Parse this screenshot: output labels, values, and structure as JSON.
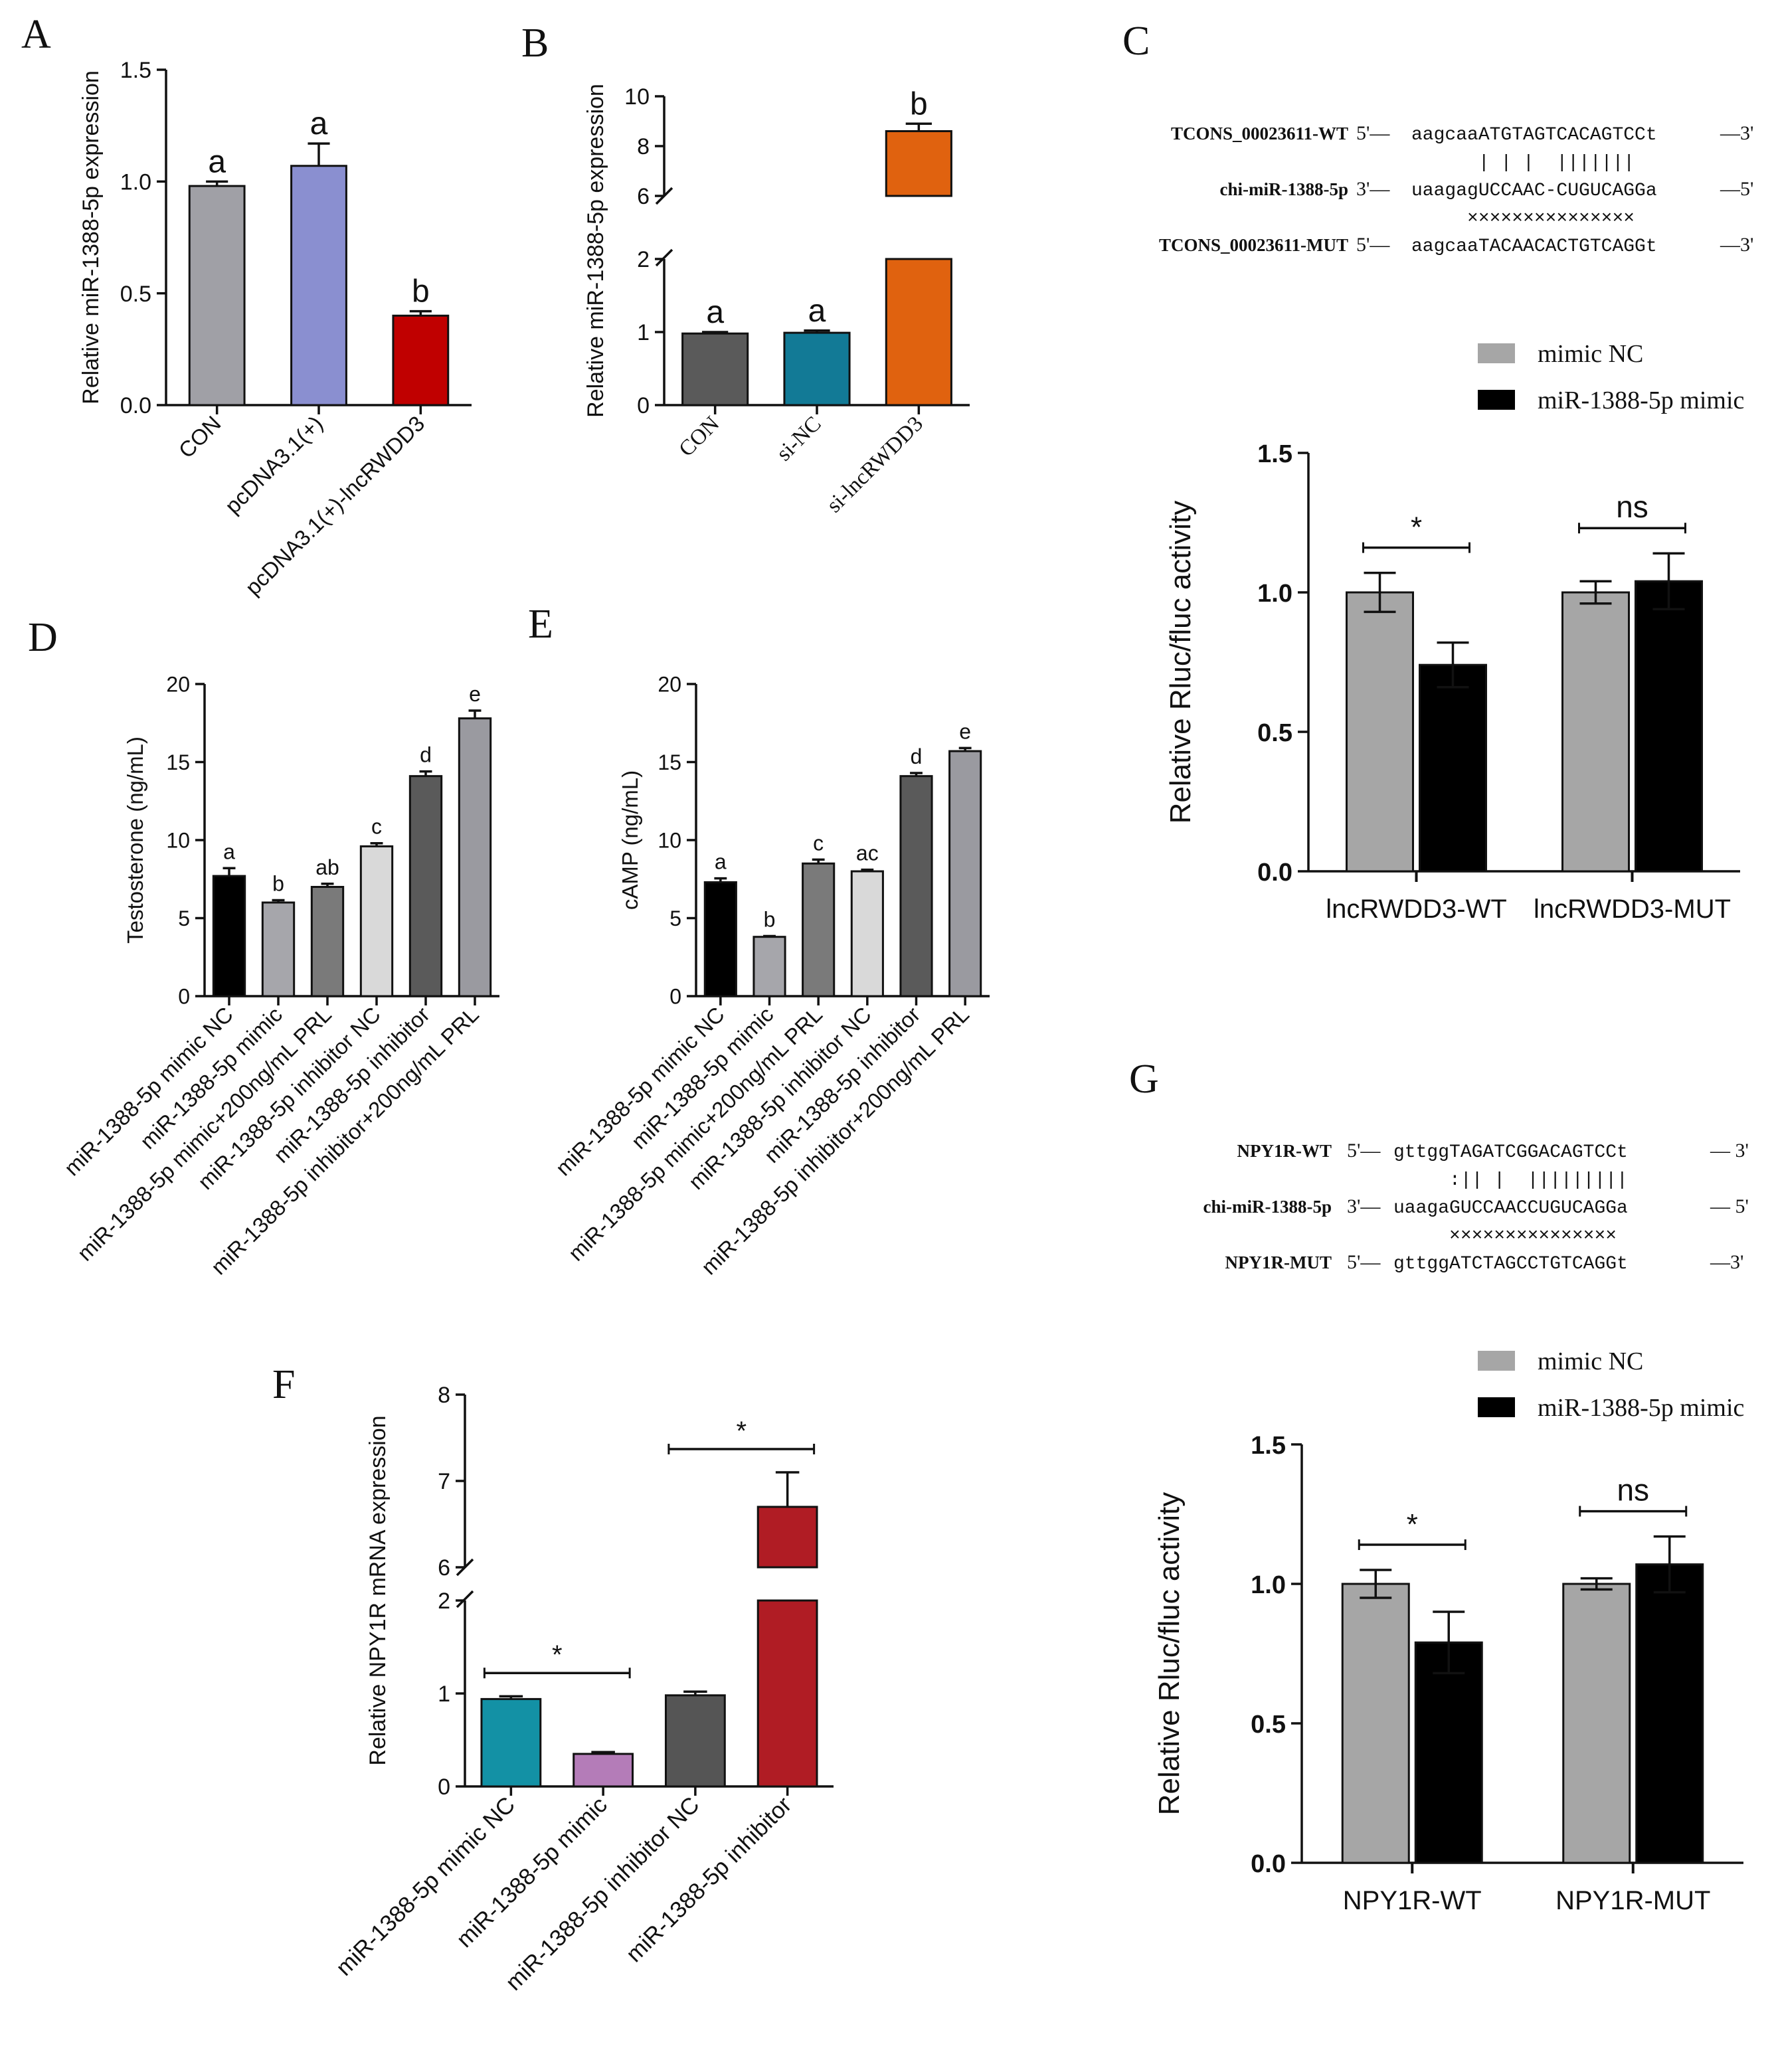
{
  "figure": {
    "panel_letters": [
      "A",
      "B",
      "C",
      "D",
      "E",
      "F",
      "G"
    ]
  },
  "chart_data": [
    {
      "panel": "A",
      "type": "bar",
      "ylabel": "Relative miR-1388-5p expression",
      "xlabel": "",
      "categories": [
        "CON",
        "pcDNA3.1(+)",
        "pcDNA3.1(+)-lncRWDD3"
      ],
      "values": [
        0.98,
        1.07,
        0.4
      ],
      "errors": [
        0.02,
        0.1,
        0.02
      ],
      "letters": [
        "a",
        "a",
        "b"
      ],
      "colors": [
        "#a0a0a6",
        "#8a8fd0",
        "#c00000"
      ],
      "ylim": [
        0,
        1.5
      ],
      "yticks": [
        "0.0",
        "0.5",
        "1.0",
        "1.5"
      ]
    },
    {
      "panel": "B",
      "type": "bar",
      "broken_axis": true,
      "ylabel": "Relative miR-1388-5p expression",
      "xlabel": "",
      "categories": [
        "CON",
        "si-NC",
        "si-lncRWDD3"
      ],
      "values": [
        0.98,
        0.99,
        8.6
      ],
      "errors": [
        0.02,
        0.03,
        0.3
      ],
      "letters": [
        "a",
        "a",
        "b"
      ],
      "colors": [
        "#5a5a5a",
        "#127a96",
        "#e0620f"
      ],
      "ylim_lower": [
        0,
        2
      ],
      "ylim_upper": [
        6,
        10
      ],
      "yticks_lower": [
        "0",
        "1",
        "2"
      ],
      "yticks_upper": [
        "6",
        "8",
        "10"
      ]
    },
    {
      "panel": "C",
      "type": "bar",
      "sequence": {
        "rows": [
          {
            "label": "TCONS_00023611-WT",
            "left": "5'—",
            "seq": "aagcaaATGTAGTCACAGTCCt",
            "right": "—3'"
          },
          {
            "label": "",
            "left": "",
            "seq": "      | | |  |||||||",
            "right": ""
          },
          {
            "label": "chi-miR-1388-5p",
            "left": "3'—",
            "seq": "uaagagUCCAAC-CUGUCAGGa",
            "right": "—5'"
          },
          {
            "label": "",
            "left": "",
            "seq": "     ×××××××××××××××",
            "right": ""
          },
          {
            "label": "TCONS_00023611-MUT",
            "left": "5'—",
            "seq": "aagcaaTACAACACTGTCAGGt",
            "right": "—3'"
          }
        ]
      },
      "legend": [
        "mimic NC",
        "miR-1388-5p mimic"
      ],
      "ylabel": "Relative Rluc/fluc activity",
      "xlabel": "",
      "categories": [
        "lncRWDD3-WT",
        "lncRWDD3-MUT"
      ],
      "series": [
        {
          "name": "mimic NC",
          "color": "#a6a6a6",
          "values": [
            1.0,
            1.0
          ],
          "errors": [
            0.07,
            0.04
          ]
        },
        {
          "name": "miR-1388-5p mimic",
          "color": "#000000",
          "values": [
            0.74,
            1.04
          ],
          "errors": [
            0.08,
            0.1
          ]
        }
      ],
      "significance": [
        "*",
        "ns"
      ],
      "ylim": [
        0,
        1.5
      ],
      "yticks": [
        "0.0",
        "0.5",
        "1.0",
        "1.5"
      ]
    },
    {
      "panel": "D",
      "type": "bar",
      "ylabel": "Testosterone (ng/mL)",
      "xlabel": "",
      "categories": [
        "miR-1388-5p mimic NC",
        "miR-1388-5p mimic",
        "miR-1388-5p mimic+200ng/mL PRL",
        "miR-1388-5p inhibitor NC",
        "miR-1388-5p inhibitor",
        "miR-1388-5p inhibitor+200ng/mL PRL"
      ],
      "values": [
        7.7,
        6.0,
        7.0,
        9.6,
        14.1,
        17.8
      ],
      "errors": [
        0.5,
        0.15,
        0.2,
        0.2,
        0.3,
        0.5
      ],
      "letters": [
        "a",
        "b",
        "ab",
        "c",
        "d",
        "e"
      ],
      "colors": [
        "#000000",
        "#a6a6ab",
        "#7a7a7a",
        "#d9d9d9",
        "#5a5a5a",
        "#9a9aa0"
      ],
      "ylim": [
        0,
        20
      ],
      "yticks": [
        "0",
        "5",
        "10",
        "15",
        "20"
      ]
    },
    {
      "panel": "E",
      "type": "bar",
      "ylabel": "cAMP (ng/mL)",
      "xlabel": "",
      "categories": [
        "miR-1388-5p mimic NC",
        "miR-1388-5p mimic",
        "miR-1388-5p mimic+200ng/mL PRL",
        "miR-1388-5p inhibitor NC",
        "miR-1388-5p inhibitor",
        "miR-1388-5p inhibitor+200ng/mL PRL"
      ],
      "values": [
        7.3,
        3.8,
        8.5,
        8.0,
        14.1,
        15.7
      ],
      "errors": [
        0.25,
        0.05,
        0.25,
        0.1,
        0.2,
        0.2
      ],
      "letters": [
        "a",
        "b",
        "c",
        "ac",
        "d",
        "e"
      ],
      "colors": [
        "#000000",
        "#a6a6ab",
        "#7a7a7a",
        "#d9d9d9",
        "#5a5a5a",
        "#9a9aa0"
      ],
      "ylim": [
        0,
        20
      ],
      "yticks": [
        "0",
        "5",
        "10",
        "15",
        "20"
      ]
    },
    {
      "panel": "F",
      "type": "bar",
      "broken_axis": true,
      "ylabel": "Relative NPY1R mRNA expression",
      "xlabel": "",
      "categories": [
        "miR-1388-5p mimic NC",
        "miR-1388-5p mimic",
        "miR-1388-5p inhibitor NC",
        "miR-1388-5p inhibitor"
      ],
      "values": [
        0.94,
        0.35,
        0.98,
        6.7
      ],
      "errors": [
        0.03,
        0.02,
        0.04,
        0.4
      ],
      "colors": [
        "#1391a5",
        "#b47cb8",
        "#555555",
        "#b01c24"
      ],
      "significance": [
        "*",
        "*"
      ],
      "ylim_lower": [
        0,
        2
      ],
      "ylim_upper": [
        6,
        8
      ],
      "yticks_lower": [
        "0",
        "1",
        "2"
      ],
      "yticks_upper": [
        "6",
        "7",
        "8"
      ]
    },
    {
      "panel": "G",
      "type": "bar",
      "sequence": {
        "rows": [
          {
            "label": "NPY1R-WT",
            "left": "5'—",
            "seq": "gttggTAGATCGGACAGTCCt",
            "right": "— 3'"
          },
          {
            "label": "",
            "left": "",
            "seq": "     :|| |  |||||||||",
            "right": ""
          },
          {
            "label": "chi-miR-1388-5p",
            "left": "3'—",
            "seq": "uaagaGUCCAACCUGUCAGGa",
            "right": "— 5'"
          },
          {
            "label": "",
            "left": "",
            "seq": "     ×××××××××××××××",
            "right": ""
          },
          {
            "label": "NPY1R-MUT",
            "left": "5'—",
            "seq": "gttggATCTAGCCTGTCAGGt",
            "right": "—3'"
          }
        ]
      },
      "legend": [
        "mimic NC",
        "miR-1388-5p mimic"
      ],
      "ylabel": "Relative Rluc/fluc activity",
      "xlabel": "",
      "categories": [
        "NPY1R-WT",
        "NPY1R-MUT"
      ],
      "series": [
        {
          "name": "mimic NC",
          "color": "#a6a6a6",
          "values": [
            1.0,
            1.0
          ],
          "errors": [
            0.05,
            0.02
          ]
        },
        {
          "name": "miR-1388-5p mimic",
          "color": "#000000",
          "values": [
            0.79,
            1.07
          ],
          "errors": [
            0.11,
            0.1
          ]
        }
      ],
      "significance": [
        "*",
        "ns"
      ],
      "ylim": [
        0,
        1.5
      ],
      "yticks": [
        "0.0",
        "0.5",
        "1.0",
        "1.5"
      ]
    }
  ]
}
